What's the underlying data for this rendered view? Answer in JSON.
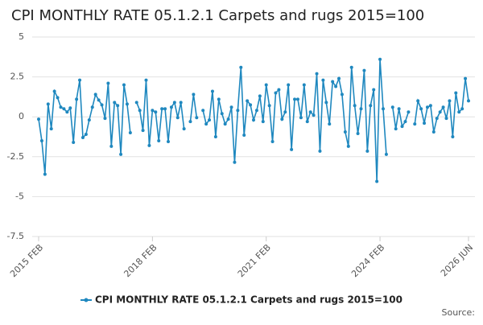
{
  "chart_data": {
    "type": "line",
    "title": "CPI MONTHLY RATE 05.1.2.1 Carpets and rugs 2015=100",
    "source": "Source:",
    "categories": [
      "2015 FEB",
      null,
      null,
      null,
      null,
      null,
      null,
      null,
      null,
      null,
      null,
      null,
      null,
      null,
      null,
      null,
      null,
      null,
      null,
      null,
      null,
      null,
      null,
      null,
      null,
      null,
      null,
      null,
      null,
      null,
      null,
      null,
      null,
      null,
      null,
      null,
      "2018 FEB",
      null,
      null,
      null,
      null,
      null,
      null,
      null,
      null,
      null,
      null,
      null,
      null,
      null,
      null,
      null,
      null,
      null,
      null,
      null,
      null,
      null,
      null,
      null,
      null,
      null,
      null,
      null,
      null,
      null,
      null,
      null,
      null,
      null,
      null,
      null,
      "2021 FEB",
      null,
      null,
      null,
      null,
      null,
      null,
      null,
      null,
      null,
      null,
      null,
      null,
      null,
      null,
      null,
      null,
      null,
      null,
      null,
      null,
      null,
      null,
      null,
      null,
      null,
      null,
      null,
      null,
      null,
      null,
      null,
      null,
      null,
      null,
      null,
      "2024 FEB",
      null,
      null,
      null,
      null,
      null,
      null,
      null,
      null,
      null,
      null,
      null,
      null,
      null,
      null,
      null,
      null,
      null,
      null,
      null,
      null,
      null,
      null,
      null,
      null,
      null,
      null,
      null,
      "2026 JUN"
    ],
    "series": [
      {
        "name": "CPI MONTHLY RATE 05.1.2.1 Carpets and rugs 2015=100",
        "color": "#1f88bf",
        "values": [
          -0.15,
          -1.5,
          -3.6,
          0.8,
          -0.75,
          1.6,
          1.2,
          0.6,
          0.5,
          0.3,
          0.55,
          -1.6,
          1.1,
          2.3,
          -1.3,
          -1.1,
          -0.2,
          0.6,
          1.4,
          1.05,
          0.75,
          -0.1,
          2.1,
          -1.85,
          0.9,
          0.7,
          -2.35,
          2.0,
          0.8,
          -1.0,
          null,
          0.9,
          0.4,
          -0.85,
          2.3,
          -1.8,
          0.4,
          0.3,
          -1.5,
          0.5,
          0.5,
          -1.55,
          0.6,
          0.9,
          -0.05,
          0.9,
          -0.75,
          null,
          -0.3,
          1.4,
          -0.05,
          null,
          0.4,
          -0.45,
          -0.2,
          1.6,
          -1.25,
          1.1,
          0.2,
          -0.45,
          -0.15,
          0.6,
          -2.85,
          0.4,
          3.1,
          -1.15,
          1.0,
          0.75,
          -0.2,
          0.4,
          1.3,
          -0.3,
          2.0,
          0.7,
          -1.55,
          1.5,
          1.7,
          -0.15,
          0.3,
          2.0,
          -2.05,
          1.1,
          1.1,
          -0.05,
          2.0,
          -0.3,
          0.3,
          0.1,
          2.7,
          -2.15,
          2.3,
          0.9,
          -0.45,
          2.2,
          1.9,
          2.4,
          1.4,
          -0.95,
          -1.85,
          3.1,
          0.7,
          -1.05,
          0.5,
          2.9,
          -2.15,
          0.7,
          1.7,
          -4.05,
          3.6,
          0.5,
          -2.35,
          null,
          0.6,
          -0.75,
          0.5,
          -0.6,
          -0.3,
          0.3,
          null,
          -0.45,
          1.0,
          0.5,
          -0.4,
          0.6,
          0.7,
          -0.95,
          -0.1,
          0.3,
          0.6,
          -0.1,
          1.0,
          -1.25,
          1.5,
          0.3,
          0.5,
          2.4,
          1.0
        ]
      }
    ],
    "ylim": [
      -7.5,
      5
    ],
    "yticks": [
      5,
      2.5,
      0,
      -2.5,
      -5,
      -7.5
    ],
    "grid": true
  }
}
